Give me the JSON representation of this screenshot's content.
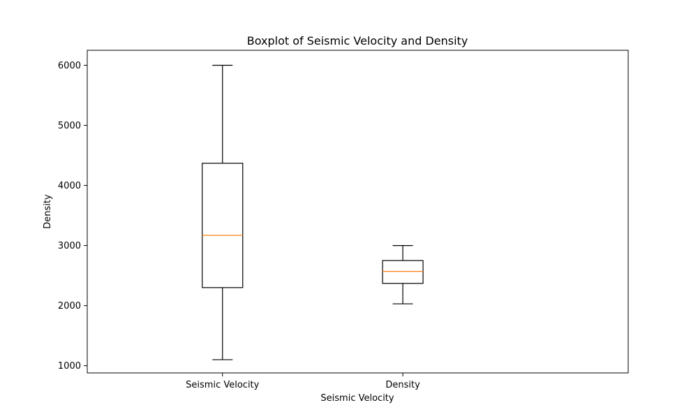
{
  "chart_data": {
    "type": "boxplot",
    "title": "Boxplot of Seismic Velocity and Density",
    "xlabel": "Seismic Velocity",
    "ylabel": "Density",
    "ylim": [
      880,
      6250
    ],
    "yticks": [
      1000,
      2000,
      3000,
      4000,
      5000,
      6000
    ],
    "grid": false,
    "categories": [
      "Seismic Velocity",
      "Density"
    ],
    "boxes": [
      {
        "whisker_low": 1100,
        "q1": 2300,
        "median": 3170,
        "q3": 4370,
        "whisker_high": 6000
      },
      {
        "whisker_low": 2030,
        "q1": 2370,
        "median": 2570,
        "q3": 2750,
        "whisker_high": 3000
      }
    ],
    "colors": {
      "box": "#000000",
      "median": "#ff7f0e",
      "axes": "#000000"
    }
  }
}
